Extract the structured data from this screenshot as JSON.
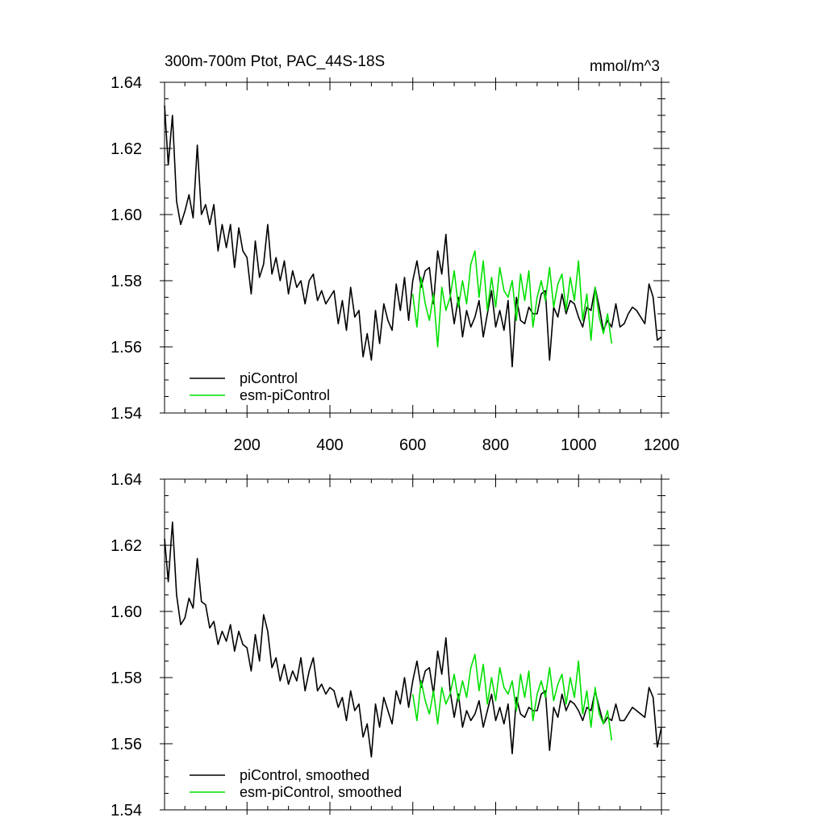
{
  "figure": {
    "units": "mmol/m^3"
  },
  "colors": {
    "piControl": "#000000",
    "esm_piControl": "#00e000",
    "axis": "#000000"
  },
  "chart_data": [
    {
      "type": "line",
      "title": "300m-700m Ptot, PAC_44S-18S",
      "units": "mmol/m^3",
      "xlim": [
        1,
        1200
      ],
      "ylim": [
        1.54,
        1.64
      ],
      "x_ticks": [
        200,
        400,
        600,
        800,
        1000,
        1200
      ],
      "x_tick_labels": [
        "200",
        "400",
        "600",
        "800",
        "1000",
        "1200"
      ],
      "y_ticks": [
        1.54,
        1.56,
        1.58,
        1.6,
        1.62,
        1.64
      ],
      "y_tick_labels": [
        "1.54",
        "1.56",
        "1.58",
        "1.60",
        "1.62",
        "1.64"
      ],
      "legend_position": "bottom-left",
      "series": [
        {
          "name": "piControl",
          "color": "#000000",
          "x": [
            1,
            10,
            20,
            30,
            40,
            50,
            60,
            70,
            80,
            90,
            100,
            110,
            120,
            130,
            140,
            150,
            160,
            170,
            180,
            190,
            200,
            210,
            220,
            230,
            240,
            250,
            260,
            270,
            280,
            290,
            300,
            310,
            320,
            330,
            340,
            350,
            360,
            370,
            380,
            390,
            400,
            410,
            420,
            430,
            440,
            450,
            460,
            470,
            480,
            490,
            500,
            510,
            520,
            530,
            540,
            550,
            560,
            570,
            580,
            590,
            600,
            610,
            620,
            630,
            640,
            650,
            660,
            670,
            680,
            690,
            700,
            710,
            720,
            730,
            740,
            750,
            760,
            770,
            780,
            790,
            800,
            810,
            820,
            830,
            840,
            850,
            860,
            870,
            880,
            890,
            900,
            910,
            920,
            930,
            940,
            950,
            960,
            970,
            980,
            990,
            1000,
            1010,
            1020,
            1030,
            1040,
            1050,
            1060,
            1070,
            1080,
            1090,
            1100,
            1110,
            1120,
            1130,
            1140,
            1150,
            1160,
            1170,
            1180,
            1190,
            1200
          ],
          "values": [
            1.633,
            1.615,
            1.63,
            1.604,
            1.597,
            1.601,
            1.606,
            1.599,
            1.621,
            1.6,
            1.603,
            1.597,
            1.603,
            1.589,
            1.597,
            1.59,
            1.597,
            1.584,
            1.596,
            1.589,
            1.587,
            1.576,
            1.592,
            1.581,
            1.585,
            1.597,
            1.582,
            1.587,
            1.58,
            1.586,
            1.576,
            1.583,
            1.578,
            1.58,
            1.573,
            1.58,
            1.582,
            1.574,
            1.577,
            1.573,
            1.575,
            1.577,
            1.567,
            1.574,
            1.565,
            1.578,
            1.569,
            1.571,
            1.557,
            1.564,
            1.556,
            1.571,
            1.561,
            1.573,
            1.568,
            1.565,
            1.579,
            1.571,
            1.581,
            1.568,
            1.58,
            1.586,
            1.578,
            1.583,
            1.584,
            1.573,
            1.589,
            1.582,
            1.594,
            1.576,
            1.567,
            1.575,
            1.563,
            1.571,
            1.566,
            1.569,
            1.574,
            1.563,
            1.57,
            1.577,
            1.566,
            1.571,
            1.565,
            1.574,
            1.554,
            1.575,
            1.568,
            1.567,
            1.572,
            1.57,
            1.57,
            1.576,
            1.577,
            1.556,
            1.572,
            1.569,
            1.576,
            1.57,
            1.574,
            1.573,
            1.569,
            1.566,
            1.572,
            1.571,
            1.578,
            1.572,
            1.565,
            1.568,
            1.566,
            1.573,
            1.566,
            1.567,
            1.57,
            1.572,
            1.571,
            1.569,
            1.567,
            1.579,
            1.575,
            1.562,
            1.563
          ]
        },
        {
          "name": "esm-piControl",
          "color": "#00e000",
          "x": [
            600,
            610,
            620,
            630,
            640,
            650,
            660,
            670,
            680,
            690,
            700,
            710,
            720,
            730,
            740,
            750,
            760,
            770,
            780,
            790,
            800,
            810,
            820,
            830,
            840,
            850,
            860,
            870,
            880,
            890,
            900,
            910,
            920,
            930,
            940,
            950,
            960,
            970,
            980,
            990,
            1000,
            1010,
            1020,
            1030,
            1040,
            1050,
            1060,
            1070,
            1080
          ],
          "values": [
            1.576,
            1.566,
            1.581,
            1.573,
            1.568,
            1.576,
            1.56,
            1.578,
            1.571,
            1.575,
            1.583,
            1.572,
            1.58,
            1.573,
            1.585,
            1.589,
            1.575,
            1.586,
            1.571,
            1.581,
            1.572,
            1.584,
            1.577,
            1.575,
            1.58,
            1.568,
            1.582,
            1.574,
            1.583,
            1.566,
            1.575,
            1.58,
            1.574,
            1.584,
            1.572,
            1.579,
            1.582,
            1.571,
            1.581,
            1.574,
            1.586,
            1.568,
            1.576,
            1.562,
            1.578,
            1.569,
            1.564,
            1.57,
            1.561
          ]
        }
      ]
    },
    {
      "type": "line",
      "title": "",
      "xlim": [
        1,
        1200
      ],
      "ylim": [
        1.54,
        1.64
      ],
      "x_ticks": [
        200,
        400,
        600,
        800,
        1000,
        1200
      ],
      "y_ticks": [
        1.54,
        1.56,
        1.58,
        1.6,
        1.62,
        1.64
      ],
      "y_tick_labels": [
        "1.54",
        "1.56",
        "1.58",
        "1.60",
        "1.62",
        "1.64"
      ],
      "legend_position": "bottom-left",
      "series": [
        {
          "name": "piControl, smoothed",
          "color": "#000000",
          "x": [
            1,
            10,
            20,
            30,
            40,
            50,
            60,
            70,
            80,
            90,
            100,
            110,
            120,
            130,
            140,
            150,
            160,
            170,
            180,
            190,
            200,
            210,
            220,
            230,
            240,
            250,
            260,
            270,
            280,
            290,
            300,
            310,
            320,
            330,
            340,
            350,
            360,
            370,
            380,
            390,
            400,
            410,
            420,
            430,
            440,
            450,
            460,
            470,
            480,
            490,
            500,
            510,
            520,
            530,
            540,
            550,
            560,
            570,
            580,
            590,
            600,
            610,
            620,
            630,
            640,
            650,
            660,
            670,
            680,
            690,
            700,
            710,
            720,
            730,
            740,
            750,
            760,
            770,
            780,
            790,
            800,
            810,
            820,
            830,
            840,
            850,
            860,
            870,
            880,
            890,
            900,
            910,
            920,
            930,
            940,
            950,
            960,
            970,
            980,
            990,
            1000,
            1010,
            1020,
            1030,
            1040,
            1050,
            1060,
            1070,
            1080,
            1090,
            1100,
            1110,
            1120,
            1130,
            1140,
            1150,
            1160,
            1170,
            1180,
            1190,
            1200
          ],
          "values": [
            1.622,
            1.609,
            1.627,
            1.605,
            1.596,
            1.598,
            1.604,
            1.601,
            1.616,
            1.603,
            1.602,
            1.595,
            1.597,
            1.59,
            1.594,
            1.591,
            1.596,
            1.588,
            1.594,
            1.59,
            1.589,
            1.582,
            1.593,
            1.585,
            1.599,
            1.594,
            1.583,
            1.586,
            1.579,
            1.584,
            1.578,
            1.582,
            1.579,
            1.586,
            1.576,
            1.582,
            1.586,
            1.576,
            1.578,
            1.575,
            1.577,
            1.576,
            1.571,
            1.574,
            1.567,
            1.576,
            1.57,
            1.572,
            1.562,
            1.566,
            1.556,
            1.572,
            1.565,
            1.574,
            1.57,
            1.566,
            1.576,
            1.572,
            1.58,
            1.571,
            1.579,
            1.585,
            1.577,
            1.582,
            1.583,
            1.575,
            1.588,
            1.581,
            1.592,
            1.576,
            1.568,
            1.575,
            1.565,
            1.57,
            1.567,
            1.569,
            1.573,
            1.565,
            1.57,
            1.575,
            1.567,
            1.571,
            1.566,
            1.572,
            1.557,
            1.574,
            1.569,
            1.568,
            1.571,
            1.57,
            1.57,
            1.575,
            1.576,
            1.558,
            1.571,
            1.568,
            1.575,
            1.57,
            1.573,
            1.572,
            1.57,
            1.567,
            1.571,
            1.57,
            1.576,
            1.571,
            1.566,
            1.568,
            1.567,
            1.572,
            1.567,
            1.567,
            1.569,
            1.571,
            1.57,
            1.569,
            1.568,
            1.577,
            1.574,
            1.559,
            1.565
          ]
        },
        {
          "name": "esm-piControl, smoothed",
          "color": "#00e000",
          "x": [
            600,
            610,
            620,
            630,
            640,
            650,
            660,
            670,
            680,
            690,
            700,
            710,
            720,
            730,
            740,
            750,
            760,
            770,
            780,
            790,
            800,
            810,
            820,
            830,
            840,
            850,
            860,
            870,
            880,
            890,
            900,
            910,
            920,
            930,
            940,
            950,
            960,
            970,
            980,
            990,
            1000,
            1010,
            1020,
            1030,
            1040,
            1050,
            1060,
            1070,
            1080
          ],
          "values": [
            1.575,
            1.567,
            1.579,
            1.573,
            1.569,
            1.576,
            1.566,
            1.577,
            1.572,
            1.575,
            1.581,
            1.573,
            1.579,
            1.574,
            1.583,
            1.587,
            1.576,
            1.584,
            1.572,
            1.58,
            1.573,
            1.583,
            1.577,
            1.575,
            1.579,
            1.57,
            1.581,
            1.574,
            1.582,
            1.567,
            1.575,
            1.579,
            1.574,
            1.583,
            1.573,
            1.578,
            1.581,
            1.572,
            1.58,
            1.574,
            1.585,
            1.569,
            1.576,
            1.565,
            1.577,
            1.569,
            1.566,
            1.57,
            1.561
          ]
        }
      ]
    }
  ]
}
